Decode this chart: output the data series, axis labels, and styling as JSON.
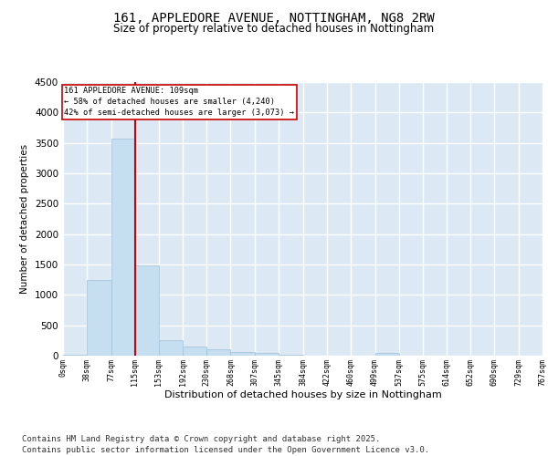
{
  "title_line1": "161, APPLEDORE AVENUE, NOTTINGHAM, NG8 2RW",
  "title_line2": "Size of property relative to detached houses in Nottingham",
  "xlabel": "Distribution of detached houses by size in Nottingham",
  "ylabel": "Number of detached properties",
  "bar_color": "#c5dff0",
  "bar_edge_color": "#a0c0d8",
  "background_color": "#dce9f5",
  "grid_color": "#ffffff",
  "annotation_line_color": "#cc0000",
  "annotation_line1": "161 APPLEDORE AVENUE: 109sqm",
  "annotation_line2": "← 58% of detached houses are smaller (4,240)",
  "annotation_line3": "42% of semi-detached houses are larger (3,073) →",
  "bins": [
    0,
    38,
    77,
    115,
    153,
    192,
    230,
    268,
    307,
    345,
    384,
    422,
    460,
    499,
    537,
    575,
    614,
    652,
    690,
    729,
    767
  ],
  "counts": [
    20,
    1250,
    3570,
    1480,
    250,
    150,
    100,
    60,
    40,
    10,
    0,
    0,
    0,
    50,
    0,
    0,
    0,
    0,
    0,
    0
  ],
  "ylim": [
    0,
    4500
  ],
  "yticks": [
    0,
    500,
    1000,
    1500,
    2000,
    2500,
    3000,
    3500,
    4000,
    4500
  ],
  "footnote": "Contains HM Land Registry data © Crown copyright and database right 2025.\nContains public sector information licensed under the Open Government Licence v3.0.",
  "footnote_fontsize": 6.5,
  "title_fontsize1": 10,
  "title_fontsize2": 8.5
}
